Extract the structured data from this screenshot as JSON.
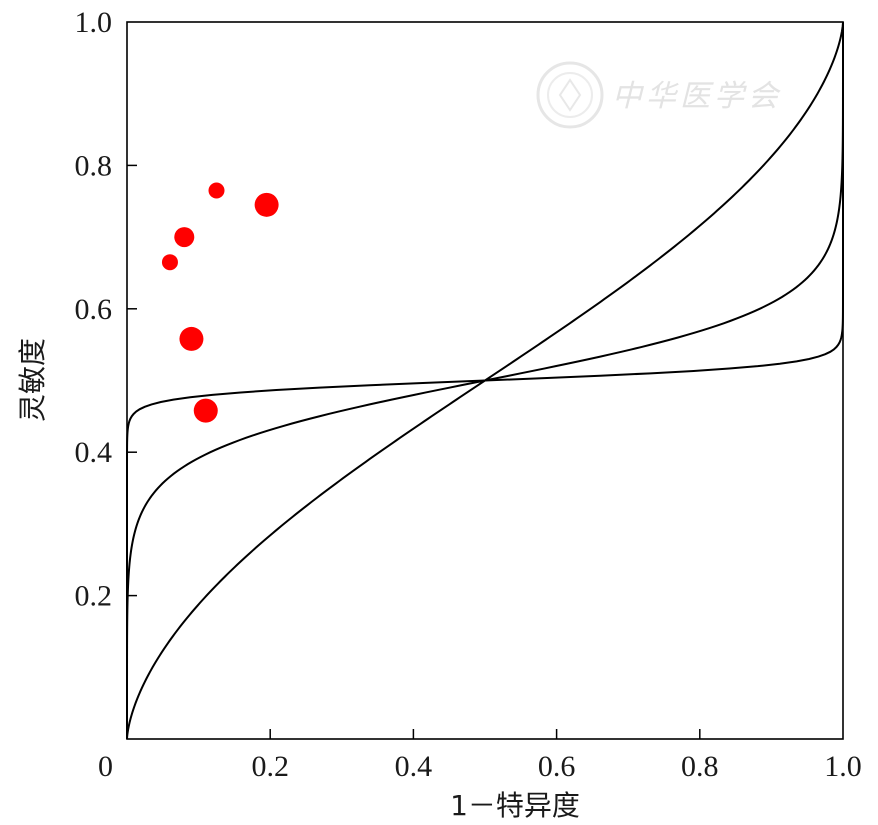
{
  "chart_data": {
    "type": "scatter",
    "title": "",
    "xlabel": "1－特异度",
    "ylabel": "灵敏度",
    "xlim": [
      0,
      1
    ],
    "ylim": [
      0,
      1
    ],
    "grid": false,
    "x_ticks": [
      "0",
      "0.2",
      "0.4",
      "0.6",
      "0.8",
      "1.0"
    ],
    "y_ticks": [
      "0.2",
      "0.4",
      "0.6",
      "0.8",
      "1.0"
    ],
    "points": [
      {
        "x": 0.06,
        "y": 0.665,
        "weight": "small"
      },
      {
        "x": 0.08,
        "y": 0.7,
        "weight": "medium"
      },
      {
        "x": 0.125,
        "y": 0.765,
        "weight": "small"
      },
      {
        "x": 0.195,
        "y": 0.745,
        "weight": "large"
      },
      {
        "x": 0.09,
        "y": 0.558,
        "weight": "large"
      },
      {
        "x": 0.11,
        "y": 0.458,
        "weight": "large"
      }
    ],
    "point_color": "#ff0000",
    "reference_curves": [
      {
        "shape": "steep"
      },
      {
        "shape": "moderate"
      },
      {
        "shape": "shallow"
      }
    ],
    "line_color": "#000000"
  },
  "watermark": {
    "text": "中华医学会",
    "color": "#e3e3e3"
  }
}
